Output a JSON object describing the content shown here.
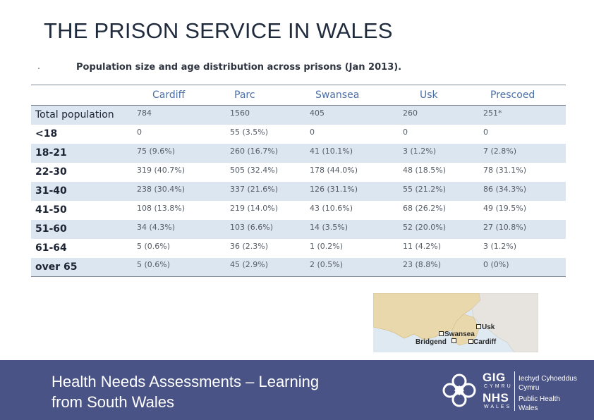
{
  "slide": {
    "title": "THE PRISON SERVICE IN WALES"
  },
  "table": {
    "caption": "Population size and age distribution across prisons (Jan 2013).",
    "columns": [
      "",
      "Cardiff",
      "Parc",
      "Swansea",
      "Usk",
      "Prescoed"
    ],
    "rows": [
      {
        "label": "Total population",
        "cells": [
          "784",
          "1560",
          "405",
          "260",
          "251*"
        ]
      },
      {
        "label": "<18",
        "cells": [
          "0",
          "55 (3.5%)",
          "0",
          "0",
          "0"
        ]
      },
      {
        "label": "18-21",
        "cells": [
          "75 (9.6%)",
          "260 (16.7%)",
          "41 (10.1%)",
          "3 (1.2%)",
          "7 (2.8%)"
        ]
      },
      {
        "label": "22-30",
        "cells": [
          "319 (40.7%)",
          "505 (32.4%)",
          "178 (44.0%)",
          "48 (18.5%)",
          "78 (31.1%)"
        ]
      },
      {
        "label": "31-40",
        "cells": [
          "238 (30.4%)",
          "337 (21.6%)",
          "126 (31.1%)",
          "55 (21.2%)",
          "86 (34.3%)"
        ]
      },
      {
        "label": "41-50",
        "cells": [
          "108 (13.8%)",
          "219 (14.0%)",
          "43 (10.6%)",
          "68 (26.2%)",
          "49 (19.5%)"
        ]
      },
      {
        "label": "51-60",
        "cells": [
          "34 (4.3%)",
          "103 (6.6%)",
          "14 (3.5%)",
          "52 (20.0%)",
          "27 (10.8%)"
        ]
      },
      {
        "label": "61-64",
        "cells": [
          "5 (0.6%)",
          "36 (2.3%)",
          "1 (0.2%)",
          "11 (4.2%)",
          "3 (1.2%)"
        ]
      },
      {
        "label": "over 65",
        "cells": [
          "5 (0.6%)",
          "45 (2.9%)",
          "2 (0.5%)",
          "23 (8.8%)",
          "0 (0%)"
        ]
      }
    ]
  },
  "map": {
    "labels": {
      "usk": "Usk",
      "swansea": "Swansea",
      "bridgend": "Bridgend",
      "cardiff": "Cardiff"
    },
    "colors": {
      "sea": "#dfe9f2",
      "land": "#ead8ad",
      "england": "#e7e4df"
    }
  },
  "footer": {
    "line1": "Health Needs Assessments – Learning",
    "line2": "from South Wales",
    "logo": {
      "gig": "GIG",
      "cymru": "CYMRU",
      "nhs": "NHS",
      "wales": "WALES",
      "org_lines": [
        "Iechyd Cyhoeddus",
        "Cymru",
        "Public Health",
        "Wales"
      ]
    },
    "colors": {
      "band": "#4a5386",
      "text": "#ffffff"
    }
  }
}
